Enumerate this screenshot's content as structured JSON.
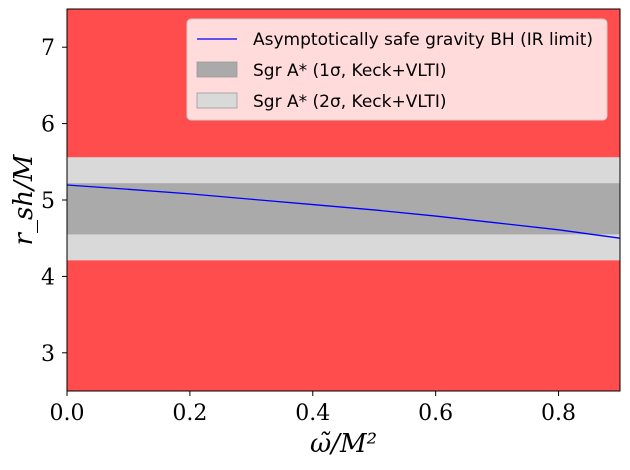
{
  "chart_data": {
    "type": "line",
    "title": "",
    "xlabel": "ω̃/M²",
    "ylabel": "r_sh/M",
    "xlim": [
      0.0,
      0.9
    ],
    "ylim": [
      2.5,
      7.5
    ],
    "xticks": [
      "0.0",
      "0.2",
      "0.4",
      "0.6",
      "0.8"
    ],
    "xtick_values": [
      0.0,
      0.2,
      0.4,
      0.6,
      0.8
    ],
    "yticks": [
      "3",
      "4",
      "5",
      "6",
      "7"
    ],
    "ytick_values": [
      3,
      4,
      5,
      6,
      7
    ],
    "grid": false,
    "legend_position": "top-right",
    "background_color": "#ff4c4c",
    "series": [
      {
        "name": "Asymptotically safe gravity BH (IR limit)",
        "color": "#0000ff",
        "x": [
          0.0,
          0.1,
          0.2,
          0.3,
          0.4,
          0.5,
          0.6,
          0.7,
          0.8,
          0.9
        ],
        "y": [
          5.196,
          5.14,
          5.08,
          5.01,
          4.94,
          4.87,
          4.79,
          4.7,
          4.61,
          4.5
        ]
      }
    ],
    "bands": [
      {
        "name": "Sgr A* (2σ, Keck+VLTI)",
        "color": "#d9d9d9",
        "ymin": 4.21,
        "ymax": 5.56
      },
      {
        "name": "Sgr A* (1σ, Keck+VLTI)",
        "color": "#aaaaaa",
        "ymin": 4.55,
        "ymax": 5.22
      }
    ],
    "legend": [
      {
        "label": "Asymptotically safe gravity BH (IR limit)",
        "kind": "line",
        "color": "#0000ff"
      },
      {
        "label": "Sgr A* (1σ, Keck+VLTI)",
        "kind": "patch",
        "color": "#aaaaaa"
      },
      {
        "label": "Sgr A* (2σ, Keck+VLTI)",
        "kind": "patch",
        "color": "#d9d9d9"
      }
    ]
  }
}
